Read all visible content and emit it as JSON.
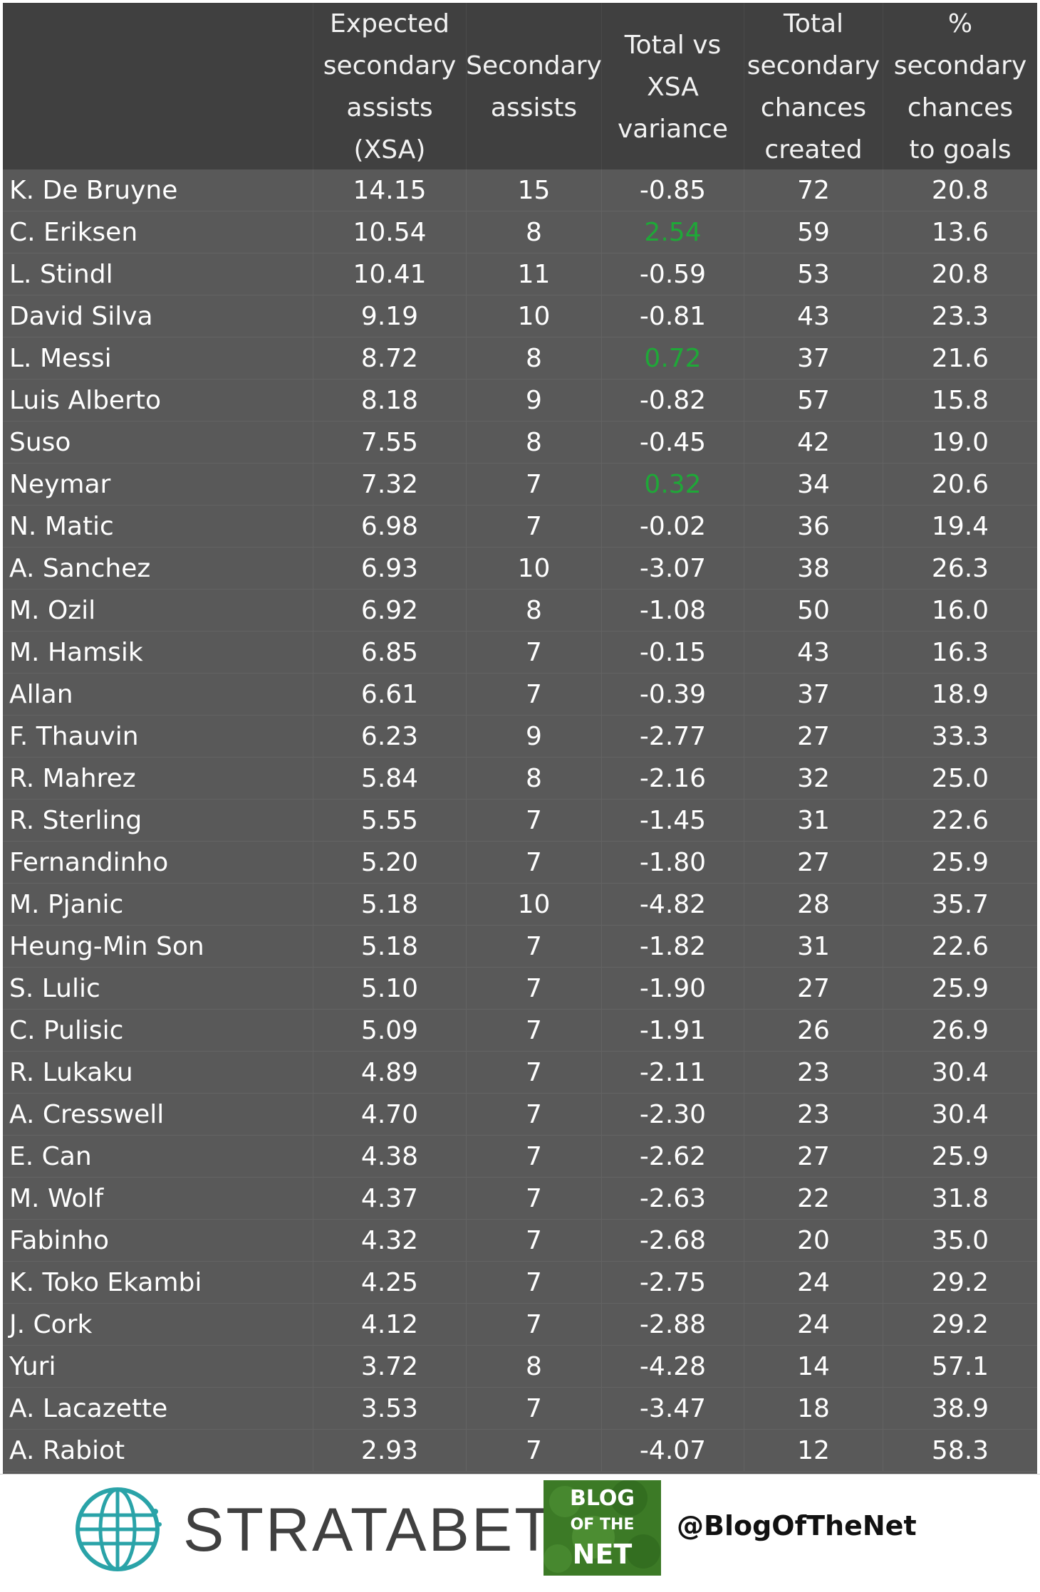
{
  "chart_data": {
    "type": "table",
    "columns": [
      "",
      "Expected\nsecondary\nassists\n(XSA)",
      "Secondary\nassists",
      "Total vs\nXSA\nvariance",
      "Total\nsecondary\nchances\ncreated",
      "%\nsecondary\nchances\nto goals"
    ],
    "rows": [
      [
        "K. De Bruyne",
        "14.15",
        "15",
        "-0.85",
        "72",
        "20.8"
      ],
      [
        "C. Eriksen",
        "10.54",
        "8",
        "2.54",
        "59",
        "13.6"
      ],
      [
        "L. Stindl",
        "10.41",
        "11",
        "-0.59",
        "53",
        "20.8"
      ],
      [
        "David Silva",
        "9.19",
        "10",
        "-0.81",
        "43",
        "23.3"
      ],
      [
        "L. Messi",
        "8.72",
        "8",
        "0.72",
        "37",
        "21.6"
      ],
      [
        "Luis Alberto",
        "8.18",
        "9",
        "-0.82",
        "57",
        "15.8"
      ],
      [
        "Suso",
        "7.55",
        "8",
        "-0.45",
        "42",
        "19.0"
      ],
      [
        "Neymar",
        "7.32",
        "7",
        "0.32",
        "34",
        "20.6"
      ],
      [
        "N. Matic",
        "6.98",
        "7",
        "-0.02",
        "36",
        "19.4"
      ],
      [
        "A. Sanchez",
        "6.93",
        "10",
        "-3.07",
        "38",
        "26.3"
      ],
      [
        "M. Ozil",
        "6.92",
        "8",
        "-1.08",
        "50",
        "16.0"
      ],
      [
        "M. Hamsik",
        "6.85",
        "7",
        "-0.15",
        "43",
        "16.3"
      ],
      [
        "Allan",
        "6.61",
        "7",
        "-0.39",
        "37",
        "18.9"
      ],
      [
        "F. Thauvin",
        "6.23",
        "9",
        "-2.77",
        "27",
        "33.3"
      ],
      [
        "R. Mahrez",
        "5.84",
        "8",
        "-2.16",
        "32",
        "25.0"
      ],
      [
        "R. Sterling",
        "5.55",
        "7",
        "-1.45",
        "31",
        "22.6"
      ],
      [
        "Fernandinho",
        "5.20",
        "7",
        "-1.80",
        "27",
        "25.9"
      ],
      [
        "M. Pjanic",
        "5.18",
        "10",
        "-4.82",
        "28",
        "35.7"
      ],
      [
        "Heung-Min Son",
        "5.18",
        "7",
        "-1.82",
        "31",
        "22.6"
      ],
      [
        "S. Lulic",
        "5.10",
        "7",
        "-1.90",
        "27",
        "25.9"
      ],
      [
        "C. Pulisic",
        "5.09",
        "7",
        "-1.91",
        "26",
        "26.9"
      ],
      [
        "R. Lukaku",
        "4.89",
        "7",
        "-2.11",
        "23",
        "30.4"
      ],
      [
        "A. Cresswell",
        "4.70",
        "7",
        "-2.30",
        "23",
        "30.4"
      ],
      [
        "E. Can",
        "4.38",
        "7",
        "-2.62",
        "27",
        "25.9"
      ],
      [
        "M. Wolf",
        "4.37",
        "7",
        "-2.63",
        "22",
        "31.8"
      ],
      [
        "Fabinho",
        "4.32",
        "7",
        "-2.68",
        "20",
        "35.0"
      ],
      [
        "K. Toko Ekambi",
        "4.25",
        "7",
        "-2.75",
        "24",
        "29.2"
      ],
      [
        "J. Cork",
        "4.12",
        "7",
        "-2.88",
        "24",
        "29.2"
      ],
      [
        "Yuri",
        "3.72",
        "8",
        "-4.28",
        "14",
        "57.1"
      ],
      [
        "A. Lacazette",
        "3.53",
        "7",
        "-3.47",
        "18",
        "38.9"
      ],
      [
        "A. Rabiot",
        "2.93",
        "7",
        "-4.07",
        "12",
        "58.3"
      ]
    ],
    "positive_color": "#1fa838"
  },
  "footer": {
    "brand": "STRATABET",
    "badge_lines": [
      "BLOG",
      "OF THE",
      "NET"
    ],
    "handle": "@BlogOfTheNet"
  },
  "colors": {
    "header_bg": "#404040",
    "body_bg": "#595959",
    "text": "#ffffff",
    "positive": "#1fa838"
  }
}
